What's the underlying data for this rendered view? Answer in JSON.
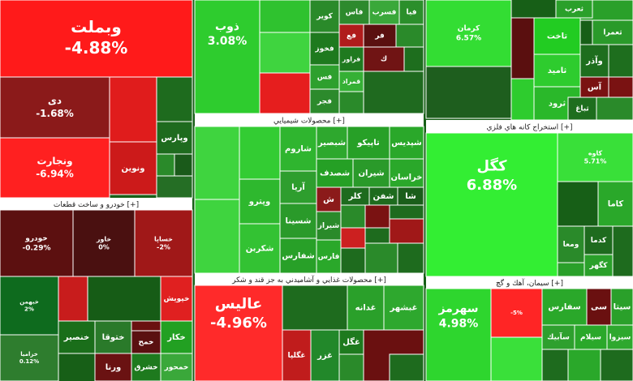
{
  "sections": [
    "خودرو و ساخت قطعات [+]",
    "محصولات شيميايي [+]",
    "استخراج كانه هاي فلزي [+]",
    "محصولات غذايي و آشاميدني به جز قند و شكر [+]",
    "سيمان، آهك و گچ [+]"
  ],
  "tiles": [
    {
      "label": "وبملت",
      "change": "-4.88%"
    },
    {
      "label": "دی",
      "change": "-1.68%"
    },
    {
      "label": "ونجارت",
      "change": "-6.94%"
    },
    {
      "label": "ونوين"
    },
    {
      "label": "وپارس"
    },
    {
      "label": "خودرو",
      "change": "-0.29%"
    },
    {
      "label": "خاور",
      "change": "0%"
    },
    {
      "label": "خساپا",
      "change": "-2%"
    },
    {
      "label": "خبهمن",
      "change": "2%"
    },
    {
      "label": "خزامیا",
      "change": "0.12%"
    },
    {
      "label": "خپویش"
    },
    {
      "label": "خنصیر"
    },
    {
      "label": "ختوقا"
    },
    {
      "label": "خمح"
    },
    {
      "label": "خكار"
    },
    {
      "label": "ورنا"
    },
    {
      "label": "خشرق"
    },
    {
      "label": "خمحور"
    },
    {
      "label": "ذوب",
      "change": "3.08%"
    },
    {
      "label": "كوير"
    },
    {
      "label": "فاس"
    },
    {
      "label": "فسرب"
    },
    {
      "label": "فيا"
    },
    {
      "label": "فخوز"
    },
    {
      "label": "فع"
    },
    {
      "label": "فر"
    },
    {
      "label": "فراور"
    },
    {
      "label": "ك"
    },
    {
      "label": "فس"
    },
    {
      "label": "قمراد"
    },
    {
      "label": "فجر"
    },
    {
      "label": "وپترو"
    },
    {
      "label": "شكربن"
    },
    {
      "label": "شاروم"
    },
    {
      "label": "آريا"
    },
    {
      "label": "شسینا"
    },
    {
      "label": "شفارس"
    },
    {
      "label": "شبصير"
    },
    {
      "label": "تاپیکو"
    },
    {
      "label": "شپديس"
    },
    {
      "label": "شصدف"
    },
    {
      "label": "شيران"
    },
    {
      "label": "خراسان"
    },
    {
      "label": "ش"
    },
    {
      "label": "كلر"
    },
    {
      "label": "شفن"
    },
    {
      "label": "شا"
    },
    {
      "label": "شیراز"
    },
    {
      "label": "فارس"
    },
    {
      "label": "عاليس",
      "change": "-4.96%"
    },
    {
      "label": "غدانه"
    },
    {
      "label": "غبشهر"
    },
    {
      "label": "غگلپا"
    },
    {
      "label": "غزر"
    },
    {
      "label": "غگل"
    },
    {
      "label": "كرمان",
      "change": "6.57%"
    },
    {
      "label": "تاخت"
    },
    {
      "label": "ثامید"
    },
    {
      "label": "ثرود"
    },
    {
      "label": "ثعرب"
    },
    {
      "label": "ثعمرا"
    },
    {
      "label": "وآذر"
    },
    {
      "label": "آس"
    },
    {
      "label": "ثباغ"
    },
    {
      "label": "كگل",
      "change": "6.88%"
    },
    {
      "label": "كاوه",
      "change": "5.71%"
    },
    {
      "label": "كاما"
    },
    {
      "label": "كدما"
    },
    {
      "label": "ومعا"
    },
    {
      "label": "كگهر"
    },
    {
      "label": "سهرمز",
      "change": "4.98%"
    },
    {
      "change": "-5%"
    },
    {
      "label": "سفارس"
    },
    {
      "label": "سی"
    },
    {
      "label": "سيتا"
    },
    {
      "label": "سآبيك"
    },
    {
      "label": "سيلام"
    },
    {
      "label": "سيزوا"
    }
  ]
}
